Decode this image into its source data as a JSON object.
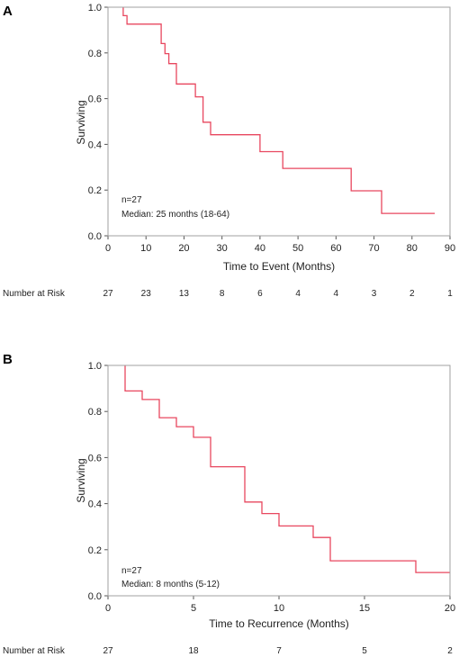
{
  "colors": {
    "curve": "#e8475f",
    "frame": "#a0a0a0",
    "tick": "#555555"
  },
  "chart_data": [
    {
      "type": "line",
      "step": true,
      "panel_label": "A",
      "xlabel": "Time to Event (Months)",
      "ylabel": "Surviving",
      "xlim": [
        0,
        90
      ],
      "ylim": [
        0,
        1
      ],
      "xticks": [
        0,
        10,
        20,
        30,
        40,
        50,
        60,
        70,
        80,
        90
      ],
      "xtick_labels": [
        "0",
        "10",
        "20",
        "30",
        "40",
        "50",
        "60",
        "70",
        "80",
        "90"
      ],
      "yticks": [
        0,
        0.2,
        0.4,
        0.6,
        0.8,
        1
      ],
      "ytick_labels": [
        "0.0",
        "0.2",
        "0.4",
        "0.6",
        "0.8",
        "1.0"
      ],
      "grid": false,
      "series": [
        {
          "x": [
            4,
            4,
            5,
            5,
            14,
            14,
            15,
            15,
            16,
            16,
            18,
            18,
            23,
            23,
            25,
            25,
            27,
            27,
            40,
            40,
            46,
            46,
            64,
            64,
            72,
            72,
            86
          ],
          "y": [
            1.0,
            0.963,
            0.963,
            0.926,
            0.926,
            0.841,
            0.841,
            0.797,
            0.797,
            0.753,
            0.753,
            0.664,
            0.664,
            0.608,
            0.608,
            0.497,
            0.497,
            0.442,
            0.442,
            0.368,
            0.368,
            0.295,
            0.295,
            0.197,
            0.197,
            0.098,
            0.098
          ]
        }
      ],
      "annotations": [
        "n=27",
        "Median: 25 months (18-64)"
      ],
      "risk_table": {
        "label": "Number at Risk",
        "x": [
          0,
          10,
          20,
          30,
          40,
          50,
          60,
          70,
          80,
          90
        ],
        "counts": [
          "27",
          "23",
          "13",
          "8",
          "6",
          "4",
          "4",
          "3",
          "2",
          "1"
        ]
      }
    },
    {
      "type": "line",
      "step": true,
      "panel_label": "B",
      "xlabel": "Time to Recurrence (Months)",
      "ylabel": "Surviving",
      "xlim": [
        0,
        20
      ],
      "ylim": [
        0,
        1
      ],
      "xticks": [
        0,
        5,
        10,
        15,
        20
      ],
      "xtick_labels": [
        "0",
        "5",
        "10",
        "15",
        "20"
      ],
      "yticks": [
        0,
        0.2,
        0.4,
        0.6,
        0.8,
        1
      ],
      "ytick_labels": [
        "0.0",
        "0.2",
        "0.4",
        "0.6",
        "0.8",
        "1.0"
      ],
      "grid": false,
      "series": [
        {
          "x": [
            1,
            1,
            2,
            2,
            3,
            3,
            4,
            4,
            5,
            5,
            6,
            6,
            8,
            8,
            9,
            9,
            10,
            10,
            12,
            12,
            13,
            13,
            18,
            18,
            20
          ],
          "y": [
            1.0,
            0.889,
            0.889,
            0.852,
            0.852,
            0.773,
            0.773,
            0.734,
            0.734,
            0.688,
            0.688,
            0.56,
            0.56,
            0.407,
            0.407,
            0.357,
            0.357,
            0.303,
            0.303,
            0.253,
            0.253,
            0.152,
            0.152,
            0.101,
            0.101
          ]
        }
      ],
      "annotations": [
        "n=27",
        "Median: 8 months  (5-12)"
      ],
      "risk_table": {
        "label": "Number at Risk",
        "x": [
          0,
          5,
          10,
          15,
          20
        ],
        "counts": [
          "27",
          "18",
          "7",
          "5",
          "2"
        ]
      }
    }
  ]
}
